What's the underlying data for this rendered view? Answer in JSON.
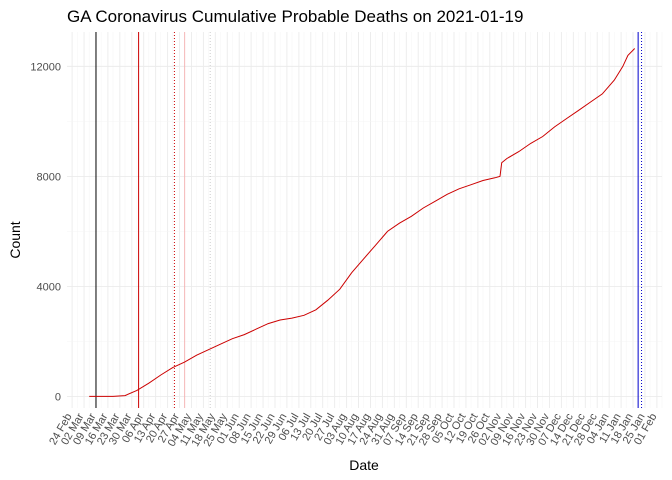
{
  "chart_data": {
    "type": "line",
    "title": "GA Coronavirus Cumulative Probable Deaths on 2021-01-19",
    "xlabel": "Date",
    "ylabel": "Count",
    "x_range": [
      "2020-02-21",
      "2021-02-04"
    ],
    "ylim": [
      -420,
      13250
    ],
    "grid": true,
    "legend": "none",
    "y_ticks": [
      0,
      4000,
      8000,
      12000
    ],
    "y_tick_labels": [
      "0",
      "4000",
      "8000",
      "12000"
    ],
    "x_ticks": [
      "2020-02-24",
      "2020-03-02",
      "2020-03-09",
      "2020-03-16",
      "2020-03-23",
      "2020-03-30",
      "2020-04-06",
      "2020-04-13",
      "2020-04-20",
      "2020-04-27",
      "2020-05-04",
      "2020-05-11",
      "2020-05-18",
      "2020-05-25",
      "2020-06-01",
      "2020-06-08",
      "2020-06-15",
      "2020-06-22",
      "2020-06-29",
      "2020-07-06",
      "2020-07-13",
      "2020-07-20",
      "2020-07-27",
      "2020-08-03",
      "2020-08-10",
      "2020-08-17",
      "2020-08-24",
      "2020-08-31",
      "2020-09-07",
      "2020-09-14",
      "2020-09-21",
      "2020-09-28",
      "2020-10-05",
      "2020-10-12",
      "2020-10-19",
      "2020-10-26",
      "2020-11-02",
      "2020-11-09",
      "2020-11-16",
      "2020-11-23",
      "2020-11-30",
      "2020-12-07",
      "2020-12-14",
      "2020-12-21",
      "2020-12-28",
      "2021-01-04",
      "2021-01-11",
      "2021-01-18",
      "2021-01-25",
      "2021-02-01"
    ],
    "x_tick_labels": [
      "24 Feb",
      "02 Mar",
      "09 Mar",
      "16 Mar",
      "23 Mar",
      "30 Mar",
      "06 Apr",
      "13 Apr",
      "20 Apr",
      "27 Apr",
      "04 May",
      "11 May",
      "18 May",
      "25 May",
      "01 Jun",
      "08 Jun",
      "15 Jun",
      "22 Jun",
      "29 Jun",
      "06 Jul",
      "13 Jul",
      "20 Jul",
      "27 Jul",
      "03 Aug",
      "10 Aug",
      "17 Aug",
      "24 Aug",
      "31 Aug",
      "07 Sep",
      "14 Sep",
      "21 Sep",
      "28 Sep",
      "05 Oct",
      "12 Oct",
      "19 Oct",
      "26 Oct",
      "02 Nov",
      "09 Nov",
      "16 Nov",
      "23 Nov",
      "30 Nov",
      "07 Dec",
      "14 Dec",
      "21 Dec",
      "28 Dec",
      "04 Jan",
      "11 Jan",
      "18 Jan",
      "25 Jan",
      "01 Feb"
    ],
    "reference_lines": [
      {
        "date": "2020-03-09",
        "color": "#000000",
        "style": "solid"
      },
      {
        "date": "2020-04-03",
        "color": "#cc0000",
        "style": "solid"
      },
      {
        "date": "2020-04-24",
        "color": "#cc0000",
        "style": "dotted"
      },
      {
        "date": "2020-04-30",
        "color": "#f4b6b6",
        "style": "solid"
      },
      {
        "date": "2020-05-15",
        "color": "#cccccc",
        "style": "dotted"
      },
      {
        "date": "2021-01-21",
        "color": "#0000cc",
        "style": "solid"
      },
      {
        "date": "2021-01-23",
        "color": "#0000cc",
        "style": "dotted"
      }
    ],
    "series": [
      {
        "color": "#cc0000",
        "x": [
          "2020-03-05",
          "2020-03-12",
          "2020-03-19",
          "2020-03-26",
          "2020-04-02",
          "2020-04-09",
          "2020-04-16",
          "2020-04-23",
          "2020-04-30",
          "2020-05-07",
          "2020-05-14",
          "2020-05-21",
          "2020-05-28",
          "2020-06-04",
          "2020-06-11",
          "2020-06-18",
          "2020-06-25",
          "2020-07-02",
          "2020-07-09",
          "2020-07-16",
          "2020-07-23",
          "2020-07-30",
          "2020-08-06",
          "2020-08-13",
          "2020-08-20",
          "2020-08-27",
          "2020-09-03",
          "2020-09-10",
          "2020-09-17",
          "2020-09-24",
          "2020-10-01",
          "2020-10-08",
          "2020-10-15",
          "2020-10-22",
          "2020-10-29",
          "2020-11-01",
          "2020-11-02",
          "2020-11-05",
          "2020-11-12",
          "2020-11-19",
          "2020-11-26",
          "2020-12-03",
          "2020-12-10",
          "2020-12-17",
          "2020-12-24",
          "2020-12-31",
          "2021-01-07",
          "2021-01-12",
          "2021-01-15",
          "2021-01-19"
        ],
        "y": [
          0,
          0,
          0,
          30,
          220,
          480,
          780,
          1050,
          1250,
          1500,
          1700,
          1900,
          2100,
          2250,
          2450,
          2650,
          2780,
          2850,
          2950,
          3150,
          3500,
          3900,
          4500,
          5000,
          5500,
          6000,
          6300,
          6550,
          6850,
          7100,
          7350,
          7550,
          7700,
          7850,
          7950,
          8000,
          8500,
          8650,
          8900,
          9200,
          9450,
          9800,
          10100,
          10400,
          10700,
          11000,
          11500,
          12000,
          12400,
          12650
        ]
      }
    ]
  }
}
